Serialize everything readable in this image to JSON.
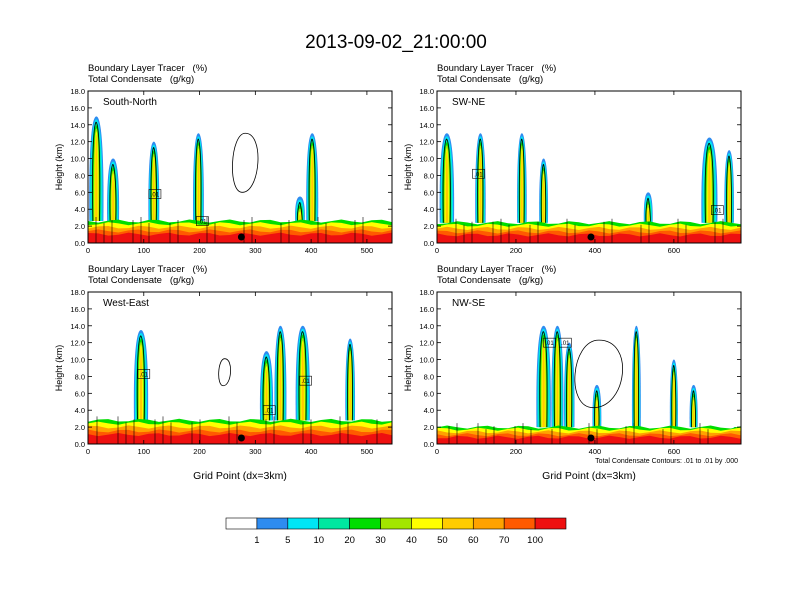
{
  "title": "2013-09-02_21:00:00",
  "colors": {
    "scale": [
      "#ffffff",
      "#2e8cf0",
      "#00e6f5",
      "#00e8a0",
      "#00dd00",
      "#a3e600",
      "#ffff00",
      "#ffcc00",
      "#ffa200",
      "#ff5a00",
      "#ee1010"
    ],
    "contour": "#000000",
    "marker": "#000000"
  },
  "colorbar": {
    "labels": [
      "1",
      "5",
      "10",
      "20",
      "30",
      "40",
      "50",
      "60",
      "70",
      "100"
    ]
  },
  "chart_data": [
    {
      "type": "heatmap",
      "panel_label": "South-North",
      "subtitle_lines": [
        "Boundary Layer Tracer   (%)",
        "Total Condensate   (g/kg)"
      ],
      "ylabel": "Height (km)",
      "xlabel": "",
      "xlim": [
        0,
        545
      ],
      "ylim": [
        0,
        18
      ],
      "xticks": [
        0,
        100,
        200,
        300,
        400,
        500
      ],
      "yticks": [
        "0.0",
        "2.0",
        "4.0",
        "6.0",
        "8.0",
        "10.0",
        "12.0",
        "14.0",
        "16.0",
        "18.0"
      ],
      "marker_x": 275,
      "boundary_layer_top_km": 2.6,
      "contour_labels": [
        {
          "x": 120,
          "y": 5.8,
          "text": ".01"
        },
        {
          "x": 205,
          "y": 2.6,
          "text": ".01"
        }
      ],
      "plumes": [
        {
          "x": 15,
          "w": 18,
          "top": 15
        },
        {
          "x": 45,
          "w": 14,
          "top": 10
        },
        {
          "x": 118,
          "w": 12,
          "top": 12
        },
        {
          "x": 198,
          "w": 12,
          "top": 13
        },
        {
          "x": 380,
          "w": 10,
          "top": 5.5
        },
        {
          "x": 402,
          "w": 14,
          "top": 13
        }
      ],
      "contours": [
        {
          "x": 282,
          "y": 9.5,
          "rx": 15,
          "ry": 3.5
        }
      ]
    },
    {
      "type": "heatmap",
      "panel_label": "SW-NE",
      "subtitle_lines": [
        "Boundary Layer Tracer   (%)",
        "Total Condensate   (g/kg)"
      ],
      "ylabel": "Height (km)",
      "xlabel": "",
      "xlim": [
        0,
        770
      ],
      "ylim": [
        0,
        18
      ],
      "xticks": [
        0,
        200,
        400,
        600
      ],
      "yticks": [
        "0.0",
        "2.0",
        "4.0",
        "6.0",
        "8.0",
        "10.0",
        "12.0",
        "14.0",
        "16.0",
        "18.0"
      ],
      "marker_x": 390,
      "boundary_layer_top_km": 2.4,
      "contour_labels": [
        {
          "x": 105,
          "y": 8.2,
          "text": ".01"
        },
        {
          "x": 710,
          "y": 3.9,
          "text": ".01"
        }
      ],
      "plumes": [
        {
          "x": 25,
          "w": 26,
          "top": 13
        },
        {
          "x": 110,
          "w": 16,
          "top": 13
        },
        {
          "x": 215,
          "w": 14,
          "top": 13
        },
        {
          "x": 270,
          "w": 12,
          "top": 10
        },
        {
          "x": 535,
          "w": 12,
          "top": 6
        },
        {
          "x": 690,
          "w": 30,
          "top": 12.5
        },
        {
          "x": 740,
          "w": 14,
          "top": 11
        }
      ],
      "contours": []
    },
    {
      "type": "heatmap",
      "panel_label": "West-East",
      "subtitle_lines": [
        "Boundary Layer Tracer   (%)",
        "Total Condensate   (g/kg)"
      ],
      "ylabel": "Height (km)",
      "xlabel": "Grid Point (dx=3km)",
      "xlim": [
        0,
        545
      ],
      "ylim": [
        0,
        18
      ],
      "xticks": [
        0,
        100,
        200,
        300,
        400,
        500
      ],
      "yticks": [
        "0.0",
        "2.0",
        "4.0",
        "6.0",
        "8.0",
        "10.0",
        "12.0",
        "14.0",
        "16.0",
        "18.0"
      ],
      "marker_x": 275,
      "boundary_layer_top_km": 2.8,
      "contour_labels": [
        {
          "x": 100,
          "y": 8.3,
          "text": ".01"
        },
        {
          "x": 325,
          "y": 4.0,
          "text": ".01"
        },
        {
          "x": 390,
          "y": 7.5,
          "text": ".01"
        }
      ],
      "plumes": [
        {
          "x": 95,
          "w": 18,
          "top": 13.5
        },
        {
          "x": 320,
          "w": 16,
          "top": 11
        },
        {
          "x": 345,
          "w": 14,
          "top": 14
        },
        {
          "x": 385,
          "w": 18,
          "top": 14
        },
        {
          "x": 470,
          "w": 10,
          "top": 12.5
        }
      ],
      "contours": [
        {
          "x": 245,
          "y": 8.5,
          "rx": 7,
          "ry": 1.6
        }
      ]
    },
    {
      "type": "heatmap",
      "panel_label": "NW-SE",
      "subtitle_lines": [
        "Boundary Layer Tracer   (%)",
        "Total Condensate   (g/kg)"
      ],
      "ylabel": "Height (km)",
      "xlabel": "Grid Point (dx=3km)",
      "xlim": [
        0,
        770
      ],
      "ylim": [
        0,
        18
      ],
      "xticks": [
        0,
        200,
        400,
        600
      ],
      "yticks": [
        "0.0",
        "2.0",
        "4.0",
        "6.0",
        "8.0",
        "10.0",
        "12.0",
        "14.0",
        "16.0",
        "18.0"
      ],
      "marker_x": 390,
      "boundary_layer_top_km": 2.0,
      "contour_labels": [
        {
          "x": 285,
          "y": 12.0,
          "text": ".01"
        },
        {
          "x": 325,
          "y": 12.0,
          "text": ".01"
        }
      ],
      "plumes": [
        {
          "x": 270,
          "w": 26,
          "top": 14
        },
        {
          "x": 305,
          "w": 20,
          "top": 14
        },
        {
          "x": 335,
          "w": 16,
          "top": 12
        },
        {
          "x": 405,
          "w": 12,
          "top": 7
        },
        {
          "x": 505,
          "w": 12,
          "top": 14
        },
        {
          "x": 600,
          "w": 10,
          "top": 10
        },
        {
          "x": 650,
          "w": 10,
          "top": 7
        },
        {
          "x": 760,
          "w": 10,
          "top": 2
        }
      ],
      "contours": [
        {
          "x": 410,
          "y": 8.3,
          "rx": 28,
          "ry": 4
        }
      ],
      "note": "Total Condensate Contours: .01 to .01 by .000"
    }
  ]
}
